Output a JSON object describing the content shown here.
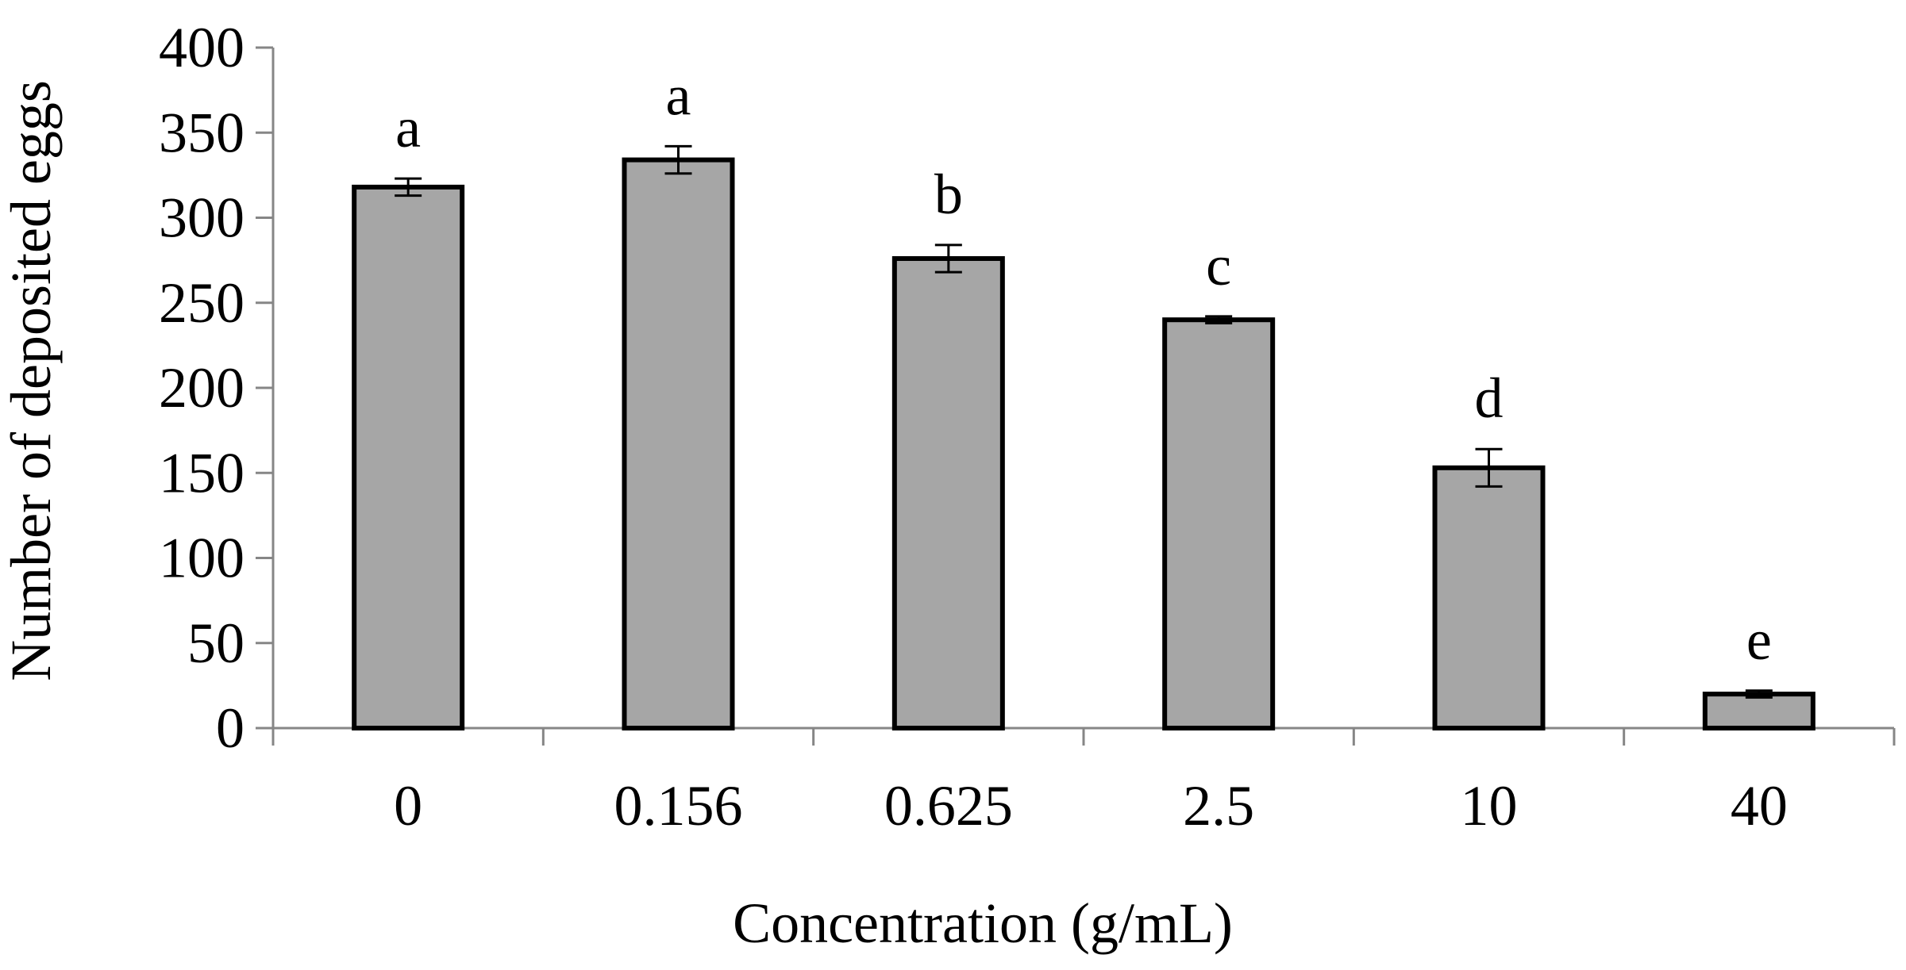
{
  "chart_data": {
    "type": "bar",
    "title": "",
    "xlabel": "Concentration (g/mL)",
    "ylabel": "Number of deposited eggs",
    "categories": [
      "0",
      "0.156",
      "0.625",
      "2.5",
      "10",
      "40"
    ],
    "values": [
      318,
      334,
      276,
      240,
      153,
      20
    ],
    "errors": [
      5,
      8,
      8,
      2,
      11,
      2
    ],
    "significance_letters": [
      "a",
      "a",
      "b",
      "c",
      "d",
      "e"
    ],
    "ylim": [
      0,
      400
    ],
    "yticks": [
      0,
      50,
      100,
      150,
      200,
      250,
      300,
      350,
      400
    ],
    "grid": false,
    "legend": "none",
    "colors": {
      "bar_fill": "#a6a6a6",
      "bar_stroke": "#000000",
      "axis": "#868686",
      "text": "#000000"
    }
  }
}
